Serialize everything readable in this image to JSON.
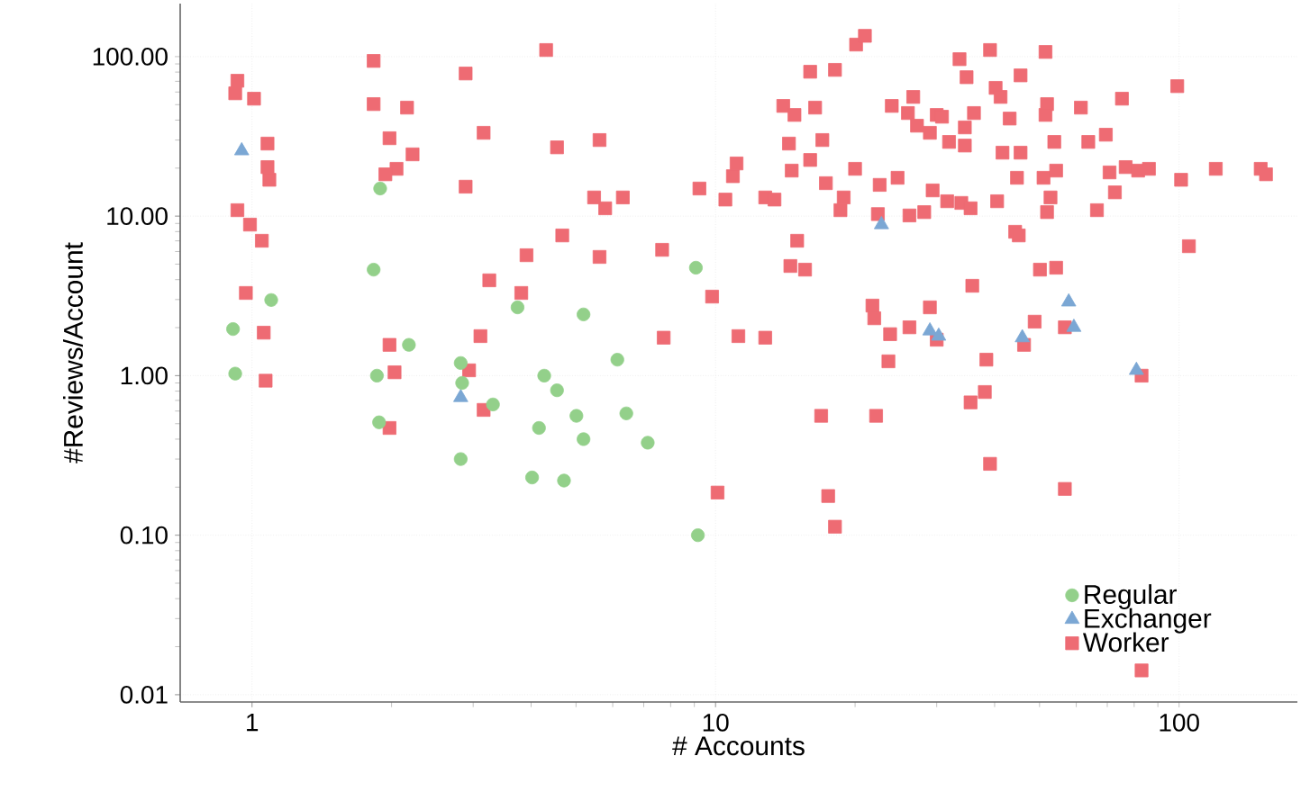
{
  "chart_data": {
    "type": "scatter",
    "xlabel": "# Accounts",
    "ylabel": "#Reviews/Account",
    "log": "xy",
    "grid": true,
    "legend": "bottom right",
    "xlim": [
      0.7,
      180
    ],
    "ylim": [
      0.009,
      215
    ],
    "xticks": [
      1,
      10,
      100
    ],
    "yticks": [
      {
        "value": 0.01,
        "label": "0.01"
      },
      {
        "value": 0.1,
        "label": "0.10"
      },
      {
        "value": 1,
        "label": "1.00"
      },
      {
        "value": 10,
        "label": "10.00"
      },
      {
        "value": 100,
        "label": "100.00"
      }
    ],
    "series": [
      {
        "name": "Regular",
        "color": "#93d08a",
        "marker": "circle",
        "x": [
          0.91,
          0.92,
          1.1,
          1.89,
          1.83,
          1.86,
          1.88,
          2.18,
          2.82,
          2.84,
          2.82,
          3.31,
          3.74,
          4.27,
          4.55,
          4.16,
          5.01,
          5.19,
          5.19,
          4.02,
          4.71,
          6.14,
          6.42,
          7.14,
          9.07,
          9.16
        ],
        "values": [
          1.96,
          1.03,
          2.98,
          14.9,
          4.62,
          1.0,
          0.51,
          1.56,
          1.2,
          0.9,
          0.3,
          0.66,
          2.68,
          1.0,
          0.81,
          0.47,
          0.56,
          2.42,
          0.4,
          0.23,
          0.22,
          1.26,
          0.58,
          0.38,
          4.75,
          0.1
        ]
      },
      {
        "name": "Exchanger",
        "color": "#7ba7d4",
        "marker": "triangle",
        "x": [
          0.95,
          2.82,
          22.8,
          29.0,
          30.3,
          45.9,
          57.8,
          59.3,
          80.9
        ],
        "values": [
          25.7,
          0.73,
          8.85,
          1.91,
          1.77,
          1.73,
          2.9,
          2.01,
          1.08
        ]
      },
      {
        "name": "Worker",
        "color": "#ee6b73",
        "marker": "square",
        "x": [
          0.93,
          0.92,
          1.01,
          1.08,
          1.08,
          1.09,
          0.93,
          0.99,
          1.05,
          0.97,
          1.06,
          1.07,
          1.83,
          1.83,
          2.16,
          1.98,
          2.05,
          1.94,
          2.22,
          1.98,
          2.03,
          1.98,
          2.89,
          2.89,
          3.16,
          4.31,
          4.55,
          5.62,
          5.47,
          5.78,
          6.31,
          4.67,
          3.91,
          5.62,
          3.25,
          3.81,
          3.11,
          2.94,
          3.16,
          7.67,
          7.73,
          9.83,
          9.23,
          10.5,
          10.9,
          11.1,
          11.2,
          10.1,
          12.8,
          13.4,
          12.8,
          14.0,
          14.8,
          16.0,
          18.1,
          16.4,
          14.4,
          17.0,
          14.6,
          16.0,
          17.3,
          20,
          18.9,
          18.6,
          15.0,
          14.5,
          15.6,
          16.9,
          17.5,
          18.1,
          20.1,
          21.0,
          21.8,
          22.0,
          22.2,
          22.6,
          22.4,
          24.7,
          24.0,
          26.0,
          26.7,
          27.2,
          29.0,
          30.0,
          30.8,
          31.9,
          33.6,
          34.8,
          34.5,
          34.5,
          36.1,
          39.1,
          40.2,
          41.2,
          43.1,
          45.5,
          41.6,
          45.5,
          44.7,
          51.5,
          51.9,
          51.5,
          53.8,
          54.3,
          51.0,
          52.8,
          51.9,
          61.4,
          63.7,
          69.5,
          75.3,
          99.1,
          70.8,
          76.7,
          81.6,
          86.1,
          72.7,
          66.5,
          101,
          120,
          150,
          154,
          105,
          29.4,
          31.6,
          33.9,
          35.5,
          40.5,
          28.2,
          26.2,
          44.3,
          45.1,
          50.1,
          54.3,
          35.8,
          23.8,
          26.2,
          29.0,
          30.0,
          23.6,
          38.4,
          38.1,
          35.5,
          46.3,
          48.8,
          56.7,
          83.0,
          39.1,
          56.7,
          83.0
        ],
        "values": [
          70.6,
          58.9,
          54.5,
          28.5,
          20.3,
          16.9,
          10.9,
          8.85,
          7.01,
          3.3,
          1.86,
          0.93,
          94,
          50.4,
          47.9,
          30.8,
          19.8,
          18.3,
          24.4,
          1.56,
          1.05,
          0.47,
          78.4,
          15.3,
          33.3,
          110,
          27,
          30,
          13.1,
          11.2,
          13.1,
          7.57,
          5.69,
          5.55,
          3.96,
          3.3,
          1.77,
          1.08,
          0.61,
          6.15,
          1.73,
          3.13,
          14.9,
          12.7,
          17.8,
          21.4,
          1.77,
          0.185,
          13.1,
          12.7,
          1.73,
          49.1,
          43.1,
          80.4,
          82.6,
          47.9,
          28.5,
          30,
          19.3,
          22.5,
          16.1,
          19.8,
          13.1,
          10.9,
          7.01,
          4.87,
          4.62,
          0.56,
          0.176,
          0.113,
          119,
          135,
          2.75,
          2.29,
          0.56,
          15.7,
          10.3,
          17.4,
          49.1,
          44.3,
          55.9,
          36.9,
          33.3,
          43.1,
          42.0,
          29.2,
          96.4,
          74.3,
          36.0,
          27.7,
          44.3,
          110,
          63.7,
          55.9,
          40.9,
          76.3,
          25.0,
          25.0,
          17.4,
          107,
          50.4,
          43.1,
          29.2,
          19.3,
          17.4,
          13.1,
          10.6,
          47.9,
          29.2,
          32.4,
          54.5,
          65.3,
          18.8,
          20.3,
          19.3,
          19.8,
          14.1,
          10.9,
          16.9,
          19.8,
          19.8,
          18.3,
          6.48,
          14.5,
          12.4,
          12.1,
          11.2,
          12.4,
          10.6,
          10.1,
          7.98,
          7.57,
          4.62,
          4.75,
          3.66,
          1.82,
          2.01,
          2.68,
          1.68,
          1.23,
          1.26,
          0.79,
          0.68,
          1.56,
          2.18,
          2.01,
          1.0,
          0.28,
          0.195,
          0.0142
        ]
      }
    ]
  }
}
